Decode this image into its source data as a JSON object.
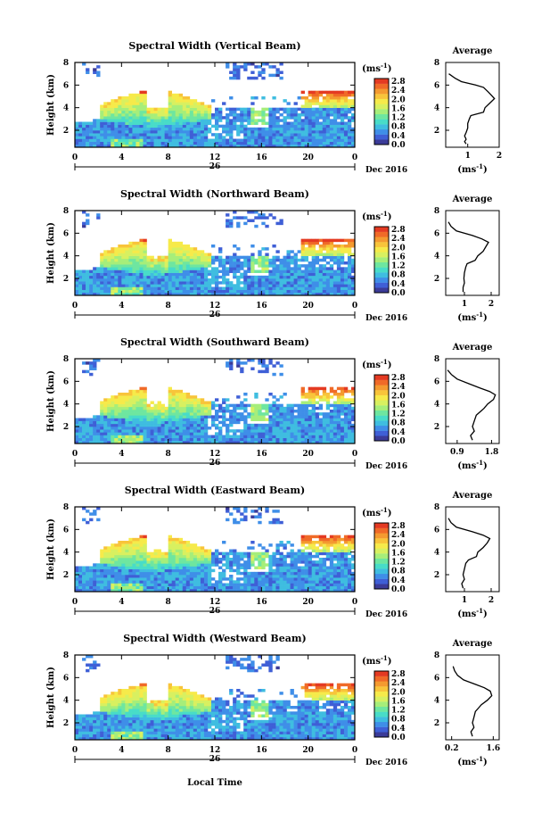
{
  "chart_data": [
    {
      "type": "heatmap",
      "title": "Spectral Width (Vertical Beam)",
      "ylabel": "Height (km)",
      "colorbar_label": "(ms-1)",
      "profile_title": "Average",
      "profile_xlabel": "(ms-1)",
      "profile_xticks": [
        "1",
        "2"
      ],
      "profile_xlim": [
        0.3,
        2.0
      ],
      "profile_avg": [
        [
          0.8,
          0.95
        ],
        [
          1.0,
          0.9
        ],
        [
          1.2,
          0.95
        ],
        [
          1.5,
          0.9
        ],
        [
          1.8,
          0.95
        ],
        [
          2.2,
          1.0
        ],
        [
          2.6,
          1.0
        ],
        [
          3.0,
          1.05
        ],
        [
          3.3,
          1.1
        ],
        [
          3.6,
          1.5
        ],
        [
          4.0,
          1.55
        ],
        [
          4.4,
          1.7
        ],
        [
          4.8,
          1.85
        ],
        [
          5.1,
          1.75
        ],
        [
          5.4,
          1.65
        ],
        [
          5.8,
          1.5
        ],
        [
          6.0,
          1.25
        ],
        [
          6.3,
          0.8
        ],
        [
          6.6,
          0.6
        ],
        [
          7.0,
          0.4
        ]
      ]
    },
    {
      "type": "heatmap",
      "title": "Spectral Width (Northward Beam)",
      "ylabel": "Height (km)",
      "colorbar_label": "(ms-1)",
      "profile_title": "Average",
      "profile_xlabel": "(ms-1)",
      "profile_xticks": [
        "1",
        "2"
      ],
      "profile_xlim": [
        0.3,
        2.3
      ],
      "profile_avg": [
        [
          0.8,
          0.95
        ],
        [
          1.2,
          0.95
        ],
        [
          1.6,
          1.0
        ],
        [
          2.0,
          0.98
        ],
        [
          2.5,
          1.0
        ],
        [
          3.0,
          1.05
        ],
        [
          3.3,
          1.1
        ],
        [
          3.6,
          1.4
        ],
        [
          4.0,
          1.5
        ],
        [
          4.4,
          1.7
        ],
        [
          4.8,
          1.8
        ],
        [
          5.2,
          1.9
        ],
        [
          5.5,
          1.65
        ],
        [
          5.8,
          1.3
        ],
        [
          6.2,
          0.7
        ],
        [
          6.6,
          0.5
        ],
        [
          7.0,
          0.4
        ]
      ]
    },
    {
      "type": "heatmap",
      "title": "Spectral Width (Southward Beam)",
      "ylabel": "Height (km)",
      "colorbar_label": "(ms-1)",
      "profile_title": "Average",
      "profile_xlabel": "(ms-1)",
      "profile_xticks": [
        "0.9",
        "1.8"
      ],
      "profile_xlim": [
        0.6,
        2.0
      ],
      "profile_avg": [
        [
          0.8,
          1.3
        ],
        [
          1.2,
          1.25
        ],
        [
          1.6,
          1.35
        ],
        [
          2.0,
          1.3
        ],
        [
          2.5,
          1.35
        ],
        [
          3.0,
          1.4
        ],
        [
          3.3,
          1.5
        ],
        [
          3.6,
          1.6
        ],
        [
          4.0,
          1.7
        ],
        [
          4.4,
          1.85
        ],
        [
          4.8,
          1.9
        ],
        [
          5.1,
          1.75
        ],
        [
          5.4,
          1.5
        ],
        [
          5.8,
          1.2
        ],
        [
          6.2,
          0.9
        ],
        [
          6.6,
          0.75
        ],
        [
          7.0,
          0.65
        ]
      ]
    },
    {
      "type": "heatmap",
      "title": "Spectral Width (Eastward Beam)",
      "ylabel": "Height (km)",
      "colorbar_label": "(ms-1)",
      "profile_title": "Average",
      "profile_xlabel": "(ms-1)",
      "profile_xticks": [
        "1",
        "2"
      ],
      "profile_xlim": [
        0.3,
        2.3
      ],
      "profile_avg": [
        [
          0.8,
          0.95
        ],
        [
          1.2,
          0.9
        ],
        [
          1.6,
          1.0
        ],
        [
          2.0,
          0.95
        ],
        [
          2.5,
          1.0
        ],
        [
          3.0,
          1.05
        ],
        [
          3.3,
          1.15
        ],
        [
          3.6,
          1.45
        ],
        [
          4.0,
          1.5
        ],
        [
          4.4,
          1.7
        ],
        [
          4.8,
          1.85
        ],
        [
          5.2,
          1.95
        ],
        [
          5.5,
          1.7
        ],
        [
          5.8,
          1.3
        ],
        [
          6.2,
          0.7
        ],
        [
          6.6,
          0.5
        ],
        [
          7.0,
          0.4
        ]
      ]
    },
    {
      "type": "heatmap",
      "title": "Spectral Width (Westward Beam)",
      "ylabel": "Height (km)",
      "colorbar_label": "(ms-1)",
      "profile_title": "Average",
      "profile_xlabel": "(ms-1)",
      "profile_xticks": [
        "0.2",
        "1.6"
      ],
      "profile_xlim": [
        0.0,
        1.8
      ],
      "profile_avg": [
        [
          0.8,
          0.9
        ],
        [
          1.2,
          0.85
        ],
        [
          1.6,
          0.95
        ],
        [
          2.0,
          0.9
        ],
        [
          2.5,
          0.95
        ],
        [
          3.0,
          1.0
        ],
        [
          3.3,
          1.1
        ],
        [
          3.6,
          1.2
        ],
        [
          4.0,
          1.4
        ],
        [
          4.4,
          1.55
        ],
        [
          4.8,
          1.5
        ],
        [
          5.1,
          1.3
        ],
        [
          5.4,
          1.0
        ],
        [
          5.8,
          0.6
        ],
        [
          6.2,
          0.4
        ],
        [
          6.6,
          0.3
        ],
        [
          7.0,
          0.25
        ]
      ]
    }
  ],
  "shared": {
    "x_ticks": [
      "0",
      "4",
      "8",
      "12",
      "16",
      "20",
      "0"
    ],
    "x_range_hours": [
      0,
      24
    ],
    "date_day": "26",
    "date_label": "Dec 2016",
    "y_ticks": [
      "2",
      "4",
      "6",
      "8"
    ],
    "y_range_km": [
      0.5,
      8.0
    ],
    "colorbar_ticks": [
      "0.0",
      "0.4",
      "0.8",
      "1.2",
      "1.6",
      "2.0",
      "2.4",
      "2.8"
    ],
    "colorbar_range": [
      0,
      2.8
    ],
    "profile_y_ticks": [
      "2",
      "4",
      "6",
      "8"
    ],
    "xlabel": "Local Time",
    "colors": [
      "#3b3b98",
      "#3f5fd6",
      "#3f8ee8",
      "#3fbde0",
      "#48dcc8",
      "#6ee6a0",
      "#a6ee7a",
      "#d8f060",
      "#f6ea4a",
      "#f8c43a",
      "#f49a30",
      "#f06a28",
      "#e43a22"
    ]
  }
}
